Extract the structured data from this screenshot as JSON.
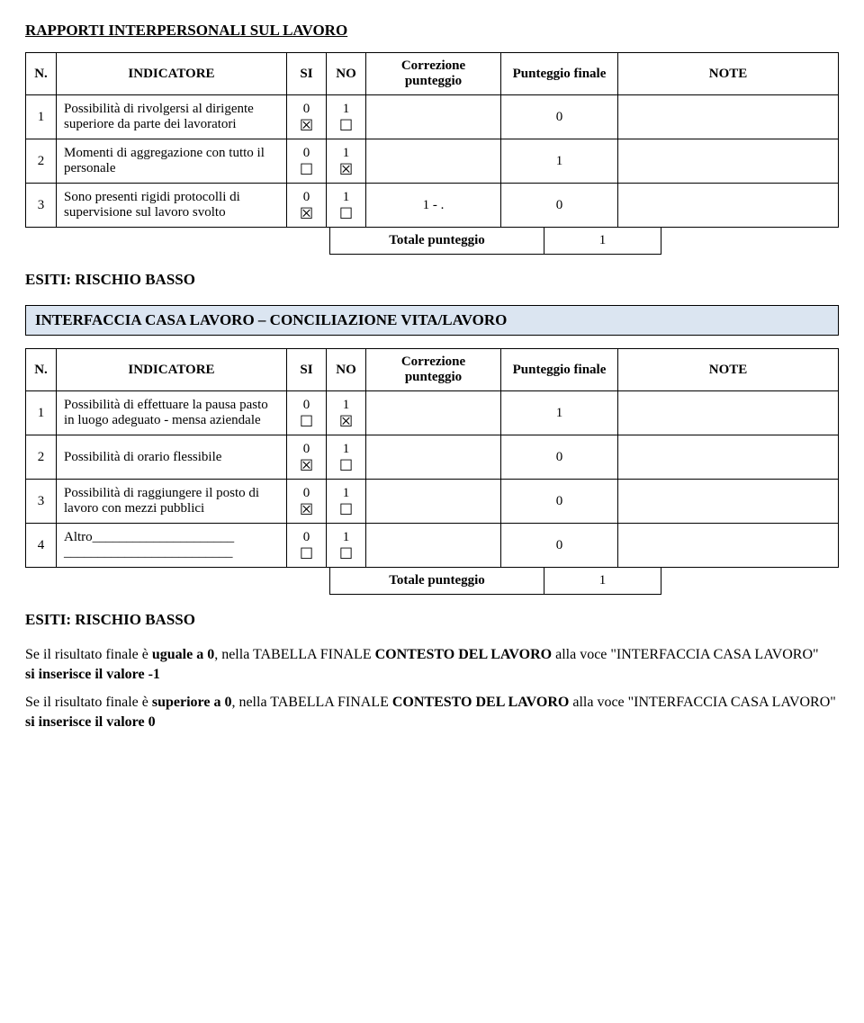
{
  "section1": {
    "title": "RAPPORTI INTERPERSONALI SUL LAVORO",
    "headers": {
      "n": "N.",
      "ind": "INDICATORE",
      "si": "SI",
      "no": "NO",
      "corr": "Correzione punteggio",
      "punt": "Punteggio finale",
      "note": "NOTE"
    },
    "rows": [
      {
        "n": "1",
        "ind": "Possibilità di rivolgersi al dirigente superiore da parte dei lavoratori",
        "si_num": "0",
        "si_box": "☒",
        "no_num": "1",
        "no_box": "☐",
        "corr": "",
        "punt": "0",
        "note": ""
      },
      {
        "n": "2",
        "ind": "Momenti di aggregazione con tutto il personale",
        "si_num": "0",
        "si_box": "☐",
        "no_num": "1",
        "no_box": "☒",
        "corr": "",
        "punt": "1",
        "note": ""
      },
      {
        "n": "3",
        "ind": "Sono presenti rigidi protocolli di supervisione sul lavoro svolto",
        "si_num": "0",
        "si_box": "☒",
        "no_num": "1",
        "no_box": "☐",
        "corr": "1 - .",
        "punt": "0",
        "note": ""
      }
    ],
    "total_label": "Totale punteggio",
    "total_value": "1",
    "esiti": "ESITI: RISCHIO BASSO"
  },
  "section2": {
    "band": "INTERFACCIA CASA LAVORO – CONCILIAZIONE VITA/LAVORO",
    "headers": {
      "n": "N.",
      "ind": "INDICATORE",
      "si": "SI",
      "no": "NO",
      "corr": "Correzione punteggio",
      "punt": "Punteggio finale",
      "note": "NOTE"
    },
    "rows": [
      {
        "n": "1",
        "ind": "Possibilità di effettuare la pausa pasto in luogo adeguato - mensa aziendale",
        "si_num": "0",
        "si_box": "☐",
        "no_num": "1",
        "no_box": "☒",
        "corr": "",
        "punt": "1",
        "note": ""
      },
      {
        "n": "2",
        "ind": "Possibilità di orario flessibile",
        "si_num": "0",
        "si_box": "☒",
        "no_num": "1",
        "no_box": "☐",
        "corr": "",
        "punt": "0",
        "note": ""
      },
      {
        "n": "3",
        "ind": "Possibilità di raggiungere il posto di lavoro con mezzi pubblici",
        "si_num": "0",
        "si_box": "☒",
        "no_num": "1",
        "no_box": "☐",
        "corr": "",
        "punt": "0",
        "note": ""
      },
      {
        "n": "4",
        "ind": "Altro_____________________ _________________________",
        "si_num": "0",
        "si_box": "☐",
        "no_num": "1",
        "no_box": "☐",
        "corr": "",
        "punt": "0",
        "note": ""
      }
    ],
    "total_label": "Totale punteggio",
    "total_value": "1",
    "esiti": "ESITI: RISCHIO BASSO"
  },
  "footnotes": {
    "p1a": "Se il risultato finale è ",
    "p1b": "uguale a 0",
    "p1c": ", nella TABELLA FINALE ",
    "p1d": "CONTESTO DEL LAVORO",
    "p1e": " alla voce \"INTERFACCIA CASA LAVORO\"",
    "p1f": "si inserisce il valore -1",
    "p2a": "Se il risultato finale è ",
    "p2b": "superiore a 0",
    "p2c": ", nella TABELLA FINALE ",
    "p2d": "CONTESTO DEL LAVORO",
    "p2e": " alla  voce \"INTERFACCIA CASA LAVORO\"",
    "p2f": "si inserisce il valore 0"
  }
}
